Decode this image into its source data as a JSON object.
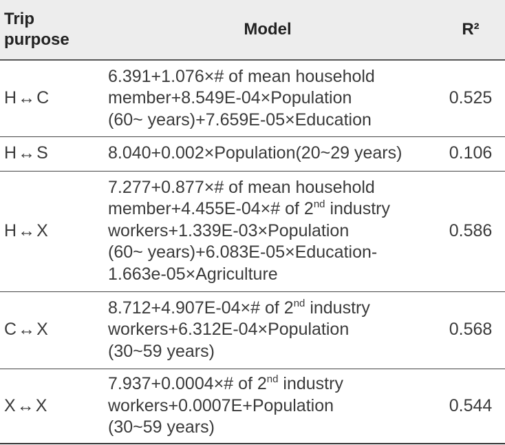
{
  "header": {
    "purpose_line1": "Trip",
    "purpose_line2": "purpose",
    "model": "Model",
    "r2": "R²"
  },
  "rows": [
    {
      "from": "H",
      "arrow": "↔",
      "to": "C",
      "model_lines": [
        "6.391+1.076×# of mean household",
        "member+8.549E-04×Population",
        "(60~ years)+7.659E-05×Education"
      ],
      "r2": "0.525"
    },
    {
      "from": "H",
      "arrow": "↔",
      "to": "S",
      "model_lines": [
        "8.040+0.002×Population(20~29 years)"
      ],
      "r2": "0.106"
    },
    {
      "from": "H",
      "arrow": "↔",
      "to": "X",
      "model_line1": "7.277+0.877×# of mean household",
      "model_line2_pre": "member+4.455E-04×# of 2",
      "model_line2_sup": "nd",
      "model_line2_post": " industry",
      "model_line3": "workers+1.339E-03×Population",
      "model_line4": "(60~ years)+6.083E-05×Education-",
      "model_line5": "1.663e-05×Agriculture",
      "r2": "0.586"
    },
    {
      "from": "C",
      "arrow": "↔",
      "to": "X",
      "model_line1_pre": "8.712+4.907E-04×# of 2",
      "model_line1_sup": "nd",
      "model_line1_post": " industry",
      "model_line2": "workers+6.312E-04×Population",
      "model_line3": "(30~59 years)",
      "r2": "0.568"
    },
    {
      "from": "X",
      "arrow": "↔",
      "to": "X",
      "model_line1_pre": "7.937+0.0004×# of 2",
      "model_line1_sup": "nd",
      "model_line1_post": " industry",
      "model_line2": "workers+0.0007E+Population",
      "model_line3": "(30~59 years)",
      "r2": "0.544"
    }
  ]
}
